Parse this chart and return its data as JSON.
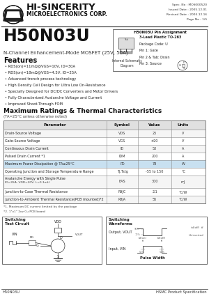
{
  "bg_color": "#ffffff",
  "header": {
    "company": "HI-SINCERITY",
    "sub": "MICROELECTRONICS CORP.",
    "spec_no": "Spec. No : MOS000520",
    "issued": "Issued Date : 2005.12.01",
    "revised": "Revised Date : 2005.12.16",
    "page": "Page No : 1/5"
  },
  "part_number": "H50N03U",
  "description": "N-Channel Enhancement-Mode MOSFET (25V, 50A)",
  "features_title": "Features",
  "features": [
    "• RDS(on)=11mΩ@VGS=10V, ID=30A",
    "• RDS(on)=18mΩ@VGS=4.5V, ID=25A",
    "• Advanced trench process technology",
    "• High Density Cell Design for Ultra Low On-Resistance",
    "• Specially Designed for DC/DC Converters and Motor Drivers",
    "• Fully Characterized Avalanche Voltage and Current",
    "• Improved Shoot-Through FOM"
  ],
  "pin_box_title": "H50N03U Pin Assignment",
  "pin_box_lines": [
    "3-Lead Plastic TO-263",
    "Package Code: U",
    "Pin 1: Gate",
    "Pin 2 & Tab: Drain",
    "Pin 3: Source"
  ],
  "internal_schematic": "Internal Schematic\nDiagram",
  "table_title": "Maximum Ratings & Thermal Characteristics",
  "table_subtitle": "(TA=25°C unless otherwise noted)",
  "table_headers": [
    "Parameter",
    "Symbol",
    "Value",
    "Units"
  ],
  "table_rows": [
    [
      "Drain-Source Voltage",
      "VDS",
      "25",
      "V"
    ],
    [
      "Gate-Source Voltage",
      "VGS",
      "±20",
      "V"
    ],
    [
      "Continuous Drain Current",
      "ID",
      "50",
      "A"
    ],
    [
      "Pulsed Drain Current *1",
      "IDM",
      "200",
      "A"
    ],
    [
      "Maximum Power Dissipation @ TA≤25°C",
      "PD",
      "78",
      "W"
    ],
    [
      "Operating Junction and Storage Temperature Range",
      "TJ,Tstg",
      "-55 to 150",
      "°C"
    ],
    [
      "Avalanche Energy with Single Pulse\nID=35A, VDD=20V, L=0.1mH",
      "EAS",
      "300",
      "mJ"
    ],
    [
      "Junction-to-Case Thermal Resistance",
      "RθJC",
      "2.1",
      "°C/W"
    ],
    [
      "Junction-to-Ambient Thermal Resistance(PCB mounted)*2",
      "RθJA",
      "55",
      "°C/W"
    ]
  ],
  "footnotes": [
    "*1. Maximum DC current limited by the package",
    "*2. 1\"x1\" 2oz Cu PCB board"
  ],
  "sw_circuit_title": "Switching\nTest Circuit",
  "sw_waveform_title": "Switching\nWaveforms",
  "footer_left": "H50N03U",
  "footer_right": "HSMC Product Specification"
}
